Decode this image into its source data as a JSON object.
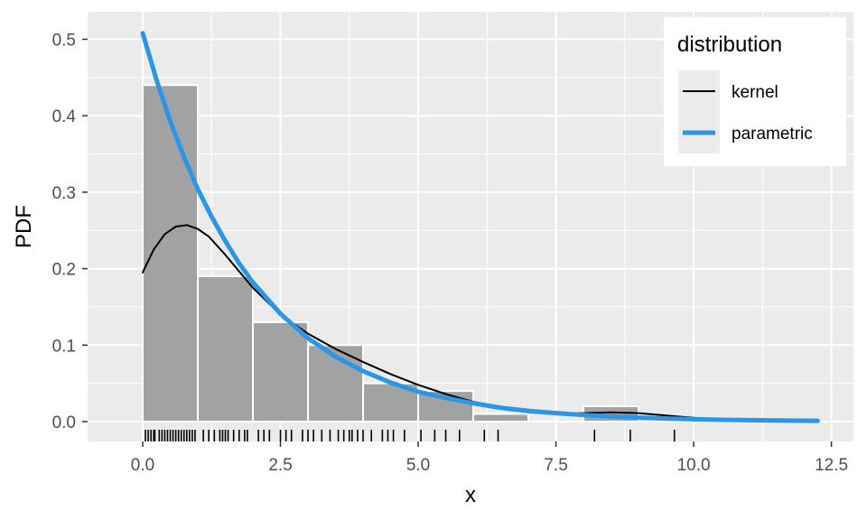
{
  "chart_data": {
    "type": "histogram",
    "xlabel": "x",
    "ylabel": "PDF",
    "xlim": [
      -1.0,
      12.9
    ],
    "ylim": [
      -0.026,
      0.536
    ],
    "xticks": [
      0.0,
      2.5,
      5.0,
      7.5,
      10.0,
      12.5
    ],
    "xtick_labels": [
      "0.0",
      "2.5",
      "5.0",
      "7.5",
      "10.0",
      "12.5"
    ],
    "yticks": [
      0.0,
      0.1,
      0.2,
      0.3,
      0.4,
      0.5
    ],
    "ytick_labels": [
      "0.0",
      "0.1",
      "0.2",
      "0.3",
      "0.4",
      "0.5"
    ],
    "grid": true,
    "histogram": {
      "bin_edges": [
        0,
        1,
        2,
        3,
        4,
        5,
        6,
        7,
        8,
        9
      ],
      "density": [
        0.44,
        0.19,
        0.13,
        0.1,
        0.05,
        0.04,
        0.01,
        0.0,
        0.02
      ],
      "fill": "#a2a2a2",
      "edge": "#ffffff"
    },
    "rug_x": [
      0.05,
      0.1,
      0.15,
      0.2,
      0.22,
      0.3,
      0.35,
      0.4,
      0.45,
      0.5,
      0.55,
      0.6,
      0.65,
      0.7,
      0.75,
      0.8,
      0.85,
      0.9,
      0.95,
      1.1,
      1.2,
      1.3,
      1.4,
      1.45,
      1.5,
      1.55,
      1.65,
      1.75,
      1.85,
      1.9,
      2.1,
      2.2,
      2.3,
      2.5,
      2.6,
      2.7,
      2.9,
      3.0,
      3.1,
      3.25,
      3.4,
      3.55,
      3.65,
      3.75,
      3.8,
      3.9,
      4.0,
      4.15,
      4.35,
      4.45,
      4.55,
      4.75,
      5.05,
      5.3,
      5.5,
      5.75,
      6.2,
      6.45,
      8.2,
      8.85,
      9.65
    ],
    "legend": {
      "title": "distribution",
      "position": "top-right",
      "entries": [
        {
          "label": "kernel",
          "color": "#000000"
        },
        {
          "label": "parametric",
          "color": "#2b96e6"
        }
      ]
    },
    "series": [
      {
        "name": "kernel",
        "color": "#000000",
        "x": [
          0.0,
          0.2,
          0.4,
          0.6,
          0.8,
          1.0,
          1.2,
          1.5,
          2.0,
          2.5,
          3.0,
          3.5,
          4.0,
          4.5,
          5.0,
          5.5,
          6.0,
          6.5,
          7.0,
          7.5,
          8.0,
          8.5,
          9.0,
          9.5,
          10.0,
          10.5,
          11.0
        ],
        "y": [
          0.195,
          0.225,
          0.245,
          0.255,
          0.257,
          0.252,
          0.242,
          0.218,
          0.175,
          0.14,
          0.115,
          0.095,
          0.078,
          0.062,
          0.048,
          0.036,
          0.026,
          0.018,
          0.012,
          0.01,
          0.011,
          0.012,
          0.011,
          0.008,
          0.005,
          0.003,
          0.002
        ]
      },
      {
        "name": "parametric",
        "color": "#2b96e6",
        "x": [
          0.0,
          0.25,
          0.5,
          0.75,
          1.0,
          1.25,
          1.5,
          1.75,
          2.0,
          2.5,
          3.0,
          3.5,
          4.0,
          4.5,
          5.0,
          5.5,
          6.0,
          6.5,
          7.0,
          7.5,
          8.0,
          8.5,
          9.0,
          9.5,
          10.0,
          10.5,
          11.0,
          11.5,
          12.0,
          12.25
        ],
        "y": [
          0.508,
          0.447,
          0.393,
          0.346,
          0.304,
          0.268,
          0.236,
          0.207,
          0.182,
          0.141,
          0.109,
          0.085,
          0.066,
          0.051,
          0.039,
          0.031,
          0.024,
          0.018,
          0.014,
          0.011,
          0.0086,
          0.0066,
          0.0052,
          0.004,
          0.0031,
          0.0024,
          0.0019,
          0.0014,
          0.0011,
          0.001
        ]
      }
    ]
  }
}
